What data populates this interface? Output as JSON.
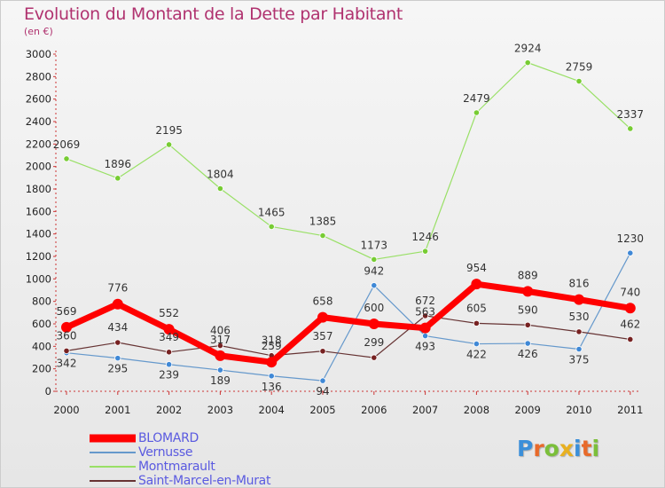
{
  "title": "Evolution du Montant de la Dette par Habitant",
  "subtitle": "(en €)",
  "logo": "Proxiti",
  "chart_data": {
    "type": "line",
    "title": "Evolution du Montant de la Dette par Habitant",
    "subtitle": "(en €)",
    "x": [
      "2000",
      "2001",
      "2002",
      "2003",
      "2004",
      "2005",
      "2006",
      "2007",
      "2008",
      "2009",
      "2010",
      "2011"
    ],
    "yticks": [
      "0",
      "200",
      "400",
      "600",
      "800",
      "1000",
      "1200",
      "1400",
      "1600",
      "1800",
      "2000",
      "2200",
      "2400",
      "2600",
      "2800",
      "3000"
    ],
    "ylim": [
      0,
      3000
    ],
    "grid": false,
    "legend": "bottom-left",
    "series": [
      {
        "name": "BLOMARD",
        "color": "#ff0000",
        "marker": "#ff0000",
        "values": [
          569,
          776,
          552,
          317,
          259,
          658,
          600,
          563,
          954,
          889,
          816,
          740
        ],
        "labels": [
          "569",
          "776",
          "552",
          "317",
          "259",
          "658",
          "600",
          "563",
          "954",
          "889",
          "816",
          "740"
        ]
      },
      {
        "name": "Vernusse",
        "color": "#6699cc",
        "marker": "#3f88d6",
        "values": [
          342,
          295,
          239,
          189,
          136,
          94,
          942,
          493,
          422,
          426,
          375,
          1230
        ],
        "labels": [
          "342",
          "295",
          "239",
          "189",
          "136",
          "94",
          "942",
          "493",
          "422",
          "426",
          "375",
          "1230"
        ]
      },
      {
        "name": "Montmarault",
        "color": "#99e066",
        "marker": "#77cc33",
        "values": [
          2069,
          1896,
          2195,
          1804,
          1465,
          1385,
          1173,
          1246,
          2479,
          2924,
          2759,
          2337
        ],
        "labels": [
          "2069",
          "1896",
          "2195",
          "1804",
          "1465",
          "1385",
          "1173",
          "1246",
          "2479",
          "2924",
          "2759",
          "2337"
        ]
      },
      {
        "name": "Saint-Marcel-en-Murat",
        "color": "#663333",
        "marker": "#772222",
        "values": [
          360,
          434,
          349,
          406,
          318,
          357,
          299,
          672,
          605,
          590,
          530,
          462
        ],
        "labels": [
          "360",
          "434",
          "349",
          "406",
          "318",
          "357",
          "299",
          "672",
          "605",
          "590",
          "530",
          "462"
        ]
      }
    ]
  }
}
